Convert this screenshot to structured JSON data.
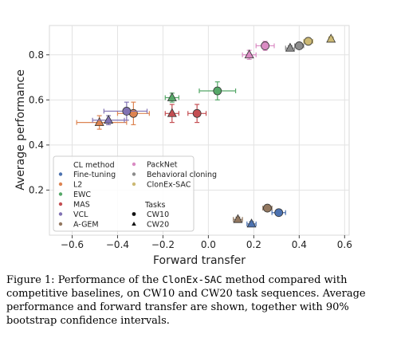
{
  "chart_data": {
    "type": "scatter",
    "xlabel": "Forward transfer",
    "ylabel": "Average performance",
    "xlim": [
      -0.7,
      0.62
    ],
    "ylim": [
      0.0,
      0.93
    ],
    "xticks": [
      "−0.6",
      "−0.4",
      "−0.2",
      "0.0",
      "0.2",
      "0.4",
      "0.6"
    ],
    "xtick_values": [
      -0.6,
      -0.4,
      -0.2,
      0.0,
      0.2,
      0.4,
      0.6
    ],
    "yticks": [
      "0.2",
      "0.4",
      "0.6",
      "0.8"
    ],
    "ytick_values": [
      0.2,
      0.4,
      0.6,
      0.8
    ],
    "grid": true,
    "legend": {
      "placement": "lower-left",
      "method_title": "CL method",
      "methods": [
        {
          "name": "Fine-tuning",
          "color": "#4c72b0"
        },
        {
          "name": "L2",
          "color": "#dd8452"
        },
        {
          "name": "EWC",
          "color": "#55a868"
        },
        {
          "name": "MAS",
          "color": "#c44e52"
        },
        {
          "name": "VCL",
          "color": "#8172b3"
        },
        {
          "name": "A-GEM",
          "color": "#937860"
        },
        {
          "name": "PackNet",
          "color": "#da8bc3"
        },
        {
          "name": "Behavioral cloning",
          "color": "#8c8c8c"
        },
        {
          "name": "ClonEx-SAC",
          "color": "#ccb974"
        }
      ],
      "tasks_title": "Tasks",
      "tasks": [
        {
          "name": "CW10",
          "marker": "circle"
        },
        {
          "name": "CW20",
          "marker": "triangle"
        }
      ]
    },
    "points": [
      {
        "method": "Fine-tuning",
        "task": "CW10",
        "x": 0.31,
        "y": 0.1,
        "xerr": [
          0.03,
          0.03
        ],
        "yerr": [
          0.01,
          0.01
        ]
      },
      {
        "method": "Fine-tuning",
        "task": "CW20",
        "x": 0.19,
        "y": 0.05,
        "xerr": [
          0.02,
          0.02
        ],
        "yerr": [
          0.01,
          0.01
        ]
      },
      {
        "method": "L2",
        "task": "CW10",
        "x": -0.33,
        "y": 0.54,
        "xerr": [
          0.07,
          0.07
        ],
        "yerr": [
          0.05,
          0.05
        ]
      },
      {
        "method": "L2",
        "task": "CW20",
        "x": -0.48,
        "y": 0.5,
        "xerr": [
          0.1,
          0.12
        ],
        "yerr": [
          0.03,
          0.03
        ]
      },
      {
        "method": "EWC",
        "task": "CW10",
        "x": 0.04,
        "y": 0.64,
        "xerr": [
          0.08,
          0.08
        ],
        "yerr": [
          0.04,
          0.04
        ]
      },
      {
        "method": "EWC",
        "task": "CW20",
        "x": -0.16,
        "y": 0.61,
        "xerr": [
          0.03,
          0.03
        ],
        "yerr": [
          0.02,
          0.02
        ]
      },
      {
        "method": "MAS",
        "task": "CW10",
        "x": -0.05,
        "y": 0.54,
        "xerr": [
          0.04,
          0.04
        ],
        "yerr": [
          0.04,
          0.04
        ]
      },
      {
        "method": "MAS",
        "task": "CW20",
        "x": -0.16,
        "y": 0.54,
        "xerr": [
          0.03,
          0.03
        ],
        "yerr": [
          0.04,
          0.04
        ]
      },
      {
        "method": "VCL",
        "task": "CW10",
        "x": -0.36,
        "y": 0.55,
        "xerr": [
          0.1,
          0.09
        ],
        "yerr": [
          0.04,
          0.04
        ]
      },
      {
        "method": "VCL",
        "task": "CW20",
        "x": -0.44,
        "y": 0.51,
        "xerr": [
          0.07,
          0.07
        ],
        "yerr": [
          0.02,
          0.02
        ]
      },
      {
        "method": "A-GEM",
        "task": "CW10",
        "x": 0.26,
        "y": 0.12,
        "xerr": [
          0.02,
          0.02
        ],
        "yerr": [
          0.01,
          0.01
        ]
      },
      {
        "method": "A-GEM",
        "task": "CW20",
        "x": 0.13,
        "y": 0.07,
        "xerr": [
          0.02,
          0.02
        ],
        "yerr": [
          0.01,
          0.01
        ]
      },
      {
        "method": "PackNet",
        "task": "CW10",
        "x": 0.25,
        "y": 0.84,
        "xerr": [
          0.04,
          0.04
        ],
        "yerr": [
          0.02,
          0.02
        ]
      },
      {
        "method": "PackNet",
        "task": "CW20",
        "x": 0.18,
        "y": 0.8,
        "xerr": [
          0.03,
          0.03
        ],
        "yerr": [
          0.02,
          0.02
        ]
      },
      {
        "method": "Behavioral cloning",
        "task": "CW10",
        "x": 0.4,
        "y": 0.84,
        "xerr": [
          0.02,
          0.02
        ],
        "yerr": [
          0.01,
          0.01
        ]
      },
      {
        "method": "Behavioral cloning",
        "task": "CW20",
        "x": 0.36,
        "y": 0.83,
        "xerr": [
          0.02,
          0.02
        ],
        "yerr": [
          0.01,
          0.01
        ]
      },
      {
        "method": "ClonEx-SAC",
        "task": "CW10",
        "x": 0.44,
        "y": 0.86,
        "xerr": [
          0.02,
          0.02
        ],
        "yerr": [
          0.01,
          0.01
        ]
      },
      {
        "method": "ClonEx-SAC",
        "task": "CW20",
        "x": 0.54,
        "y": 0.87,
        "xerr": [
          0.01,
          0.01
        ],
        "yerr": [
          0.01,
          0.01
        ]
      }
    ]
  },
  "caption": {
    "label": "Figure 1:",
    "text1": " Performance of the ",
    "method": "ClonEx-SAC",
    "text2": " method compared with competitive baselines, on CW10 and CW20 task sequences. Average performance and forward transfer are shown, together with 90% bootstrap confidence intervals."
  }
}
